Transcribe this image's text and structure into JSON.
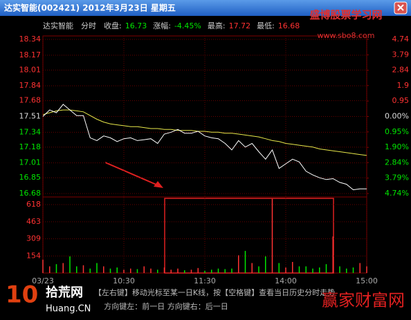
{
  "window_title": "达实智能(002421)  2012年3月23日  星期五",
  "info": [
    {
      "label": "达实智能"
    },
    {
      "label": "分时"
    },
    {
      "label": "收盘:",
      "value": "16.73"
    },
    {
      "label": "涨幅:",
      "value": "-4.45%"
    },
    {
      "label": "最高:",
      "value": "17.72"
    },
    {
      "label": "最低:",
      "value": "16.68"
    }
  ],
  "footer": [
    "【左右键】移动光标至某一日K线，按【空格键】查看当日历史分时走势",
    "方向键左：前一日    方向键右：后一日"
  ],
  "watermarks": [
    "盛博股票学习网",
    "www.sbo8.com",
    "10",
    "拾荒网",
    "Huang.CN",
    "赢家财富网"
  ],
  "chart_data": {
    "type": "line",
    "x": [
      0,
      5,
      10,
      15,
      20,
      25,
      30,
      35,
      40,
      45,
      50,
      55,
      60,
      65,
      70,
      75,
      80,
      85,
      90,
      95,
      100,
      105,
      110,
      115,
      120,
      125,
      130,
      135,
      140,
      145,
      150,
      155,
      160,
      165,
      170,
      175,
      180,
      185,
      190,
      195,
      200,
      205,
      210,
      215,
      220,
      225,
      230,
      235,
      240
    ],
    "xlim": [
      0,
      240
    ],
    "xticks": [
      {
        "value": 0,
        "label": "03/23"
      },
      {
        "value": 60,
        "label": "10:30"
      },
      {
        "value": 120,
        "label": "11:30"
      },
      {
        "value": 180,
        "label": "14:00"
      },
      {
        "value": 240,
        "label": "15:00"
      }
    ],
    "ylim": [
      16.68,
      18.34
    ],
    "yticks": [
      16.68,
      16.85,
      17.01,
      17.18,
      17.34,
      17.51,
      17.68,
      17.84,
      18.01,
      18.17,
      18.34
    ],
    "y2lim": [
      -4.74,
      4.74
    ],
    "y2ticks": [
      {
        "value": -4.74,
        "label": "4.74%"
      },
      {
        "value": -3.79,
        "label": "3.79%"
      },
      {
        "value": -2.84,
        "label": "2.84%"
      },
      {
        "value": -1.9,
        "label": "1.90%"
      },
      {
        "value": -0.95,
        "label": "0.95%"
      },
      {
        "value": 0,
        "label": "0.00%"
      },
      0.95,
      1.9,
      2.84,
      3.79,
      4.74
    ],
    "grid": true,
    "series": [
      {
        "color": "#ffffff",
        "values": [
          17.51,
          17.58,
          17.55,
          17.64,
          17.58,
          17.52,
          17.52,
          17.28,
          17.25,
          17.3,
          17.28,
          17.24,
          17.27,
          17.28,
          17.25,
          17.26,
          17.27,
          17.22,
          17.32,
          17.34,
          17.37,
          17.33,
          17.33,
          17.35,
          17.3,
          17.28,
          17.27,
          17.22,
          17.15,
          17.25,
          17.18,
          17.22,
          17.13,
          17.05,
          17.15,
          16.95,
          17.0,
          17.05,
          17.02,
          16.92,
          16.88,
          16.85,
          16.83,
          16.84,
          16.8,
          16.78,
          16.72,
          16.73,
          16.73
        ]
      },
      {
        "color": "#e8e84a",
        "values": [
          17.53,
          17.55,
          17.57,
          17.58,
          17.58,
          17.57,
          17.56,
          17.52,
          17.48,
          17.45,
          17.43,
          17.42,
          17.41,
          17.4,
          17.4,
          17.39,
          17.38,
          17.38,
          17.37,
          17.37,
          17.36,
          17.36,
          17.36,
          17.35,
          17.35,
          17.34,
          17.34,
          17.33,
          17.33,
          17.32,
          17.31,
          17.3,
          17.29,
          17.27,
          17.25,
          17.24,
          17.22,
          17.21,
          17.2,
          17.19,
          17.18,
          17.16,
          17.15,
          17.14,
          17.13,
          17.12,
          17.11,
          17.1,
          17.09
        ]
      }
    ],
    "volume": {
      "ylim": [
        0,
        687
      ],
      "yticks": [
        154,
        309,
        463,
        618
      ],
      "values": [
        120,
        60,
        80,
        90,
        150,
        60,
        70,
        40,
        90,
        60,
        40,
        50,
        30,
        40,
        35,
        60,
        40,
        30,
        50,
        30,
        40,
        25,
        30,
        45,
        20,
        30,
        40,
        35,
        40,
        160,
        200,
        90,
        60,
        150,
        670,
        90,
        50,
        100,
        60,
        60,
        40,
        50,
        80,
        330,
        60,
        40,
        50,
        90,
        60
      ],
      "up_color": "#ff3232",
      "down_color": "#00e600"
    }
  }
}
